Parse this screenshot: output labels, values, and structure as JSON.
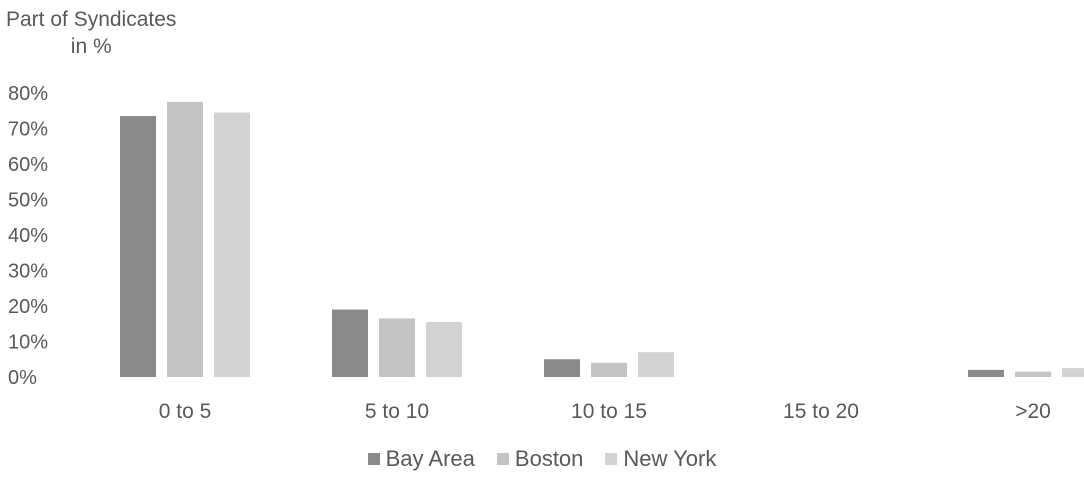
{
  "chart_data": {
    "type": "bar",
    "ylabel_line1": "Part of Syndicates",
    "ylabel_line2": "in %",
    "xlabel": "",
    "categories": [
      "0 to 5",
      "5 to 10",
      "10 to 15",
      "15 to 20",
      ">20"
    ],
    "series": [
      {
        "name": "Bay Area",
        "color": "#8a8a8a",
        "values": [
          73.5,
          19,
          5,
          0,
          2
        ]
      },
      {
        "name": "Boston",
        "color": "#c4c4c4",
        "values": [
          77.5,
          16.5,
          4,
          0,
          1.5
        ]
      },
      {
        "name": "New York",
        "color": "#d3d3d3",
        "values": [
          74.5,
          15.5,
          7,
          0,
          2.5
        ]
      }
    ],
    "yticks": [
      "0%",
      "10%",
      "20%",
      "30%",
      "40%",
      "50%",
      "60%",
      "70%",
      "80%"
    ],
    "ylim": [
      0,
      80
    ],
    "grid": false,
    "legend_position": "bottom"
  }
}
